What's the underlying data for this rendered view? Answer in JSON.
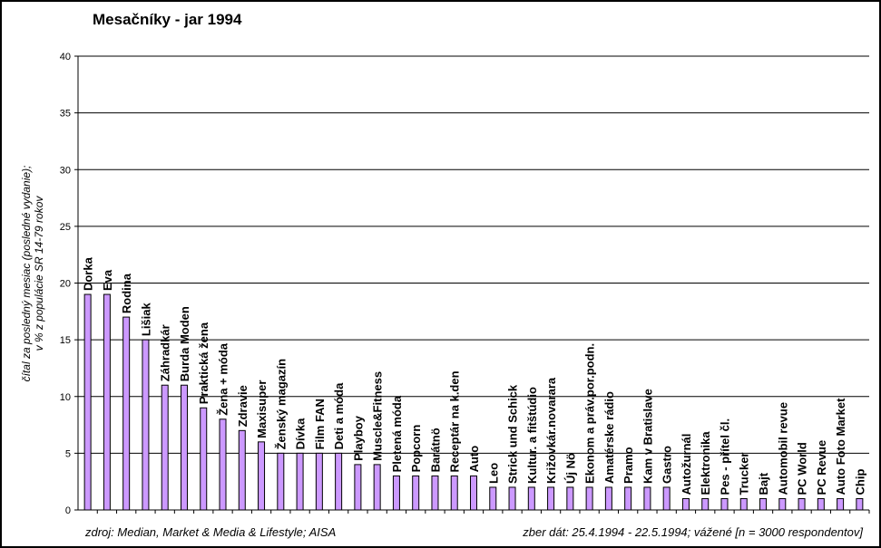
{
  "chart_data": {
    "type": "bar",
    "title": "Mesačníky - jar 1994",
    "ylabel_line1": "čítal za posledný mesiac (posledné vydanie);",
    "ylabel_line2": "v % z populácie SR 14-79 rokov",
    "ylim": [
      0,
      40
    ],
    "yticks": [
      0,
      5,
      10,
      15,
      20,
      25,
      30,
      35,
      40
    ],
    "grid": true,
    "bar_color": "#cc99ff",
    "categories": [
      "Dorka",
      "Eva",
      "Rodina",
      "Lišiak",
      "Záhradkár",
      "Burda Moden",
      "Praktická žena",
      "Žena + móda",
      "Zdravie",
      "Maxisuper",
      "Ženský magazín",
      "Dívka",
      "Film FAN",
      "Deti a móda",
      "Playboy",
      "Muscle&Fitness",
      "Pletená móda",
      "Popcorn",
      "Barátnö",
      "Receptár na k.den",
      "Auto",
      "Leo",
      "Strick und Schick",
      "Kultur. a fitštúdio",
      "Križovkár.novarara",
      "Új Nö",
      "Ekonom a práv.por.podn.",
      "Amatérske rádio",
      "Pramo",
      "Kam v Bratislave",
      "Gastro",
      "Autožurnál",
      "Elektronika",
      "Pes - přítel čl.",
      "Trucker",
      "Bajt",
      "Automobil revue",
      "PC World",
      "PC Revue",
      "Auto Foto Market",
      "Chip"
    ],
    "values": [
      19,
      19,
      17,
      15,
      11,
      11,
      9,
      8,
      7,
      6,
      5,
      5,
      5,
      5,
      4,
      4,
      3,
      3,
      3,
      3,
      3,
      2,
      2,
      2,
      2,
      2,
      2,
      2,
      2,
      2,
      2,
      1,
      1,
      1,
      1,
      1,
      1,
      1,
      1,
      1,
      1
    ]
  },
  "footer": {
    "source": "zdroj: Median, Market & Media & Lifestyle; AISA",
    "note": "zber dát: 25.4.1994 - 22.5.1994; vážené [n = 3000 respondentov]"
  }
}
